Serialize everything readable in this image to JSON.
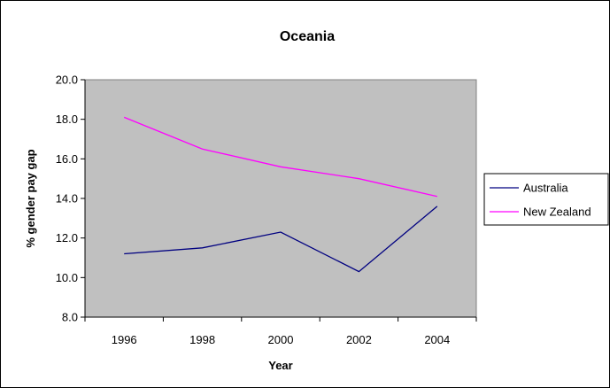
{
  "chart_data": {
    "type": "line",
    "title": "Oceania",
    "xlabel": "Year",
    "ylabel": "% gender pay gap",
    "categories": [
      "1996",
      "1998",
      "2000",
      "2002",
      "2004"
    ],
    "ylim": [
      8.0,
      20.0
    ],
    "yticks": [
      "8.0",
      "10.0",
      "12.0",
      "14.0",
      "16.0",
      "18.0",
      "20.0"
    ],
    "grid": false,
    "legend_position": "right",
    "plot_background": "#c0c0c0",
    "series": [
      {
        "name": "Australia",
        "color": "#000080",
        "values": [
          11.2,
          11.5,
          12.3,
          10.3,
          13.6
        ]
      },
      {
        "name": "New Zealand",
        "color": "#ff00ff",
        "values": [
          18.1,
          16.5,
          15.6,
          15.0,
          14.1
        ]
      }
    ]
  }
}
